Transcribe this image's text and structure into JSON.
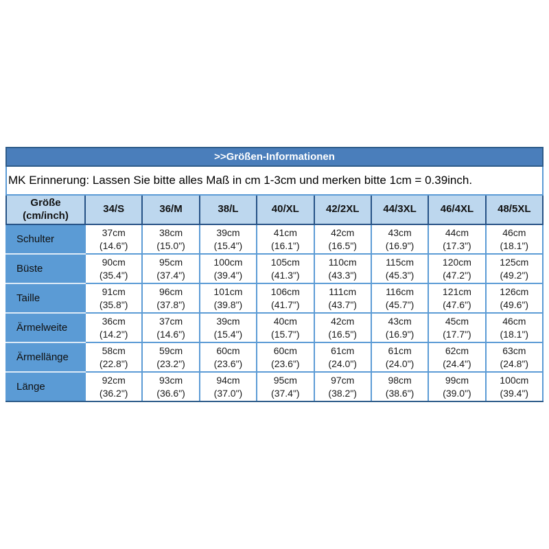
{
  "colors": {
    "title_bar_bg": "#4A7EBB",
    "title_text": "#FFFFFF",
    "header_row_bg": "#BDD7EE",
    "label_column_bg": "#5B9BD5",
    "data_cell_bg": "#FFFFFF",
    "grid_border": "#5B9BD5",
    "dark_border": "#2E5C8A",
    "body_text": "#000000"
  },
  "chart_data": {
    "type": "table",
    "title": ">>Größen-Informationen",
    "note": "MK Erinnerung: Lassen Sie bitte alles Maß in cm 1-3cm und merken bitte 1cm = 0.39inch.",
    "corner_header": {
      "line1": "Größe",
      "line2": "(cm/inch)"
    },
    "size_columns": [
      "34/S",
      "36/M",
      "38/L",
      "40/XL",
      "42/2XL",
      "44/3XL",
      "46/4XL",
      "48/5XL"
    ],
    "rows": [
      {
        "label": "Schulter",
        "cells": [
          {
            "cm": "37cm",
            "inch": "(14.6\")"
          },
          {
            "cm": "38cm",
            "inch": "(15.0\")"
          },
          {
            "cm": "39cm",
            "inch": "(15.4\")"
          },
          {
            "cm": "41cm",
            "inch": "(16.1\")"
          },
          {
            "cm": "42cm",
            "inch": "(16.5\")"
          },
          {
            "cm": "43cm",
            "inch": "(16.9\")"
          },
          {
            "cm": "44cm",
            "inch": "(17.3\")"
          },
          {
            "cm": "46cm",
            "inch": "(18.1\")"
          }
        ]
      },
      {
        "label": "Büste",
        "cells": [
          {
            "cm": "90cm",
            "inch": "(35.4\")"
          },
          {
            "cm": "95cm",
            "inch": "(37.4\")"
          },
          {
            "cm": "100cm",
            "inch": "(39.4\")"
          },
          {
            "cm": "105cm",
            "inch": "(41.3\")"
          },
          {
            "cm": "110cm",
            "inch": "(43.3\")"
          },
          {
            "cm": "115cm",
            "inch": "(45.3\")"
          },
          {
            "cm": "120cm",
            "inch": "(47.2\")"
          },
          {
            "cm": "125cm",
            "inch": "(49.2\")"
          }
        ]
      },
      {
        "label": "Taille",
        "cells": [
          {
            "cm": "91cm",
            "inch": "(35.8\")"
          },
          {
            "cm": "96cm",
            "inch": "(37.8\")"
          },
          {
            "cm": "101cm",
            "inch": "(39.8\")"
          },
          {
            "cm": "106cm",
            "inch": "(41.7\")"
          },
          {
            "cm": "111cm",
            "inch": "(43.7\")"
          },
          {
            "cm": "116cm",
            "inch": "(45.7\")"
          },
          {
            "cm": "121cm",
            "inch": "(47.6\")"
          },
          {
            "cm": "126cm",
            "inch": "(49.6\")"
          }
        ]
      },
      {
        "label": "Ärmelweite",
        "cells": [
          {
            "cm": "36cm",
            "inch": "(14.2\")"
          },
          {
            "cm": "37cm",
            "inch": "(14.6\")"
          },
          {
            "cm": "39cm",
            "inch": "(15.4\")"
          },
          {
            "cm": "40cm",
            "inch": "(15.7\")"
          },
          {
            "cm": "42cm",
            "inch": "(16.5\")"
          },
          {
            "cm": "43cm",
            "inch": "(16.9\")"
          },
          {
            "cm": "45cm",
            "inch": "(17.7\")"
          },
          {
            "cm": "46cm",
            "inch": "(18.1\")"
          }
        ]
      },
      {
        "label": "Ärmellänge",
        "cells": [
          {
            "cm": "58cm",
            "inch": "(22.8\")"
          },
          {
            "cm": "59cm",
            "inch": "(23.2\")"
          },
          {
            "cm": "60cm",
            "inch": "(23.6\")"
          },
          {
            "cm": "60cm",
            "inch": "(23.6\")"
          },
          {
            "cm": "61cm",
            "inch": "(24.0\")"
          },
          {
            "cm": "61cm",
            "inch": "(24.0\")"
          },
          {
            "cm": "62cm",
            "inch": "(24.4\")"
          },
          {
            "cm": "63cm",
            "inch": "(24.8\")"
          }
        ]
      },
      {
        "label": "Länge",
        "cells": [
          {
            "cm": "92cm",
            "inch": "(36.2\")"
          },
          {
            "cm": "93cm",
            "inch": "(36.6\")"
          },
          {
            "cm": "94cm",
            "inch": "(37.0\")"
          },
          {
            "cm": "95cm",
            "inch": "(37.4\")"
          },
          {
            "cm": "97cm",
            "inch": "(38.2\")"
          },
          {
            "cm": "98cm",
            "inch": "(38.6\")"
          },
          {
            "cm": "99cm",
            "inch": "(39.0\")"
          },
          {
            "cm": "100cm",
            "inch": "(39.4\")"
          }
        ]
      }
    ]
  }
}
